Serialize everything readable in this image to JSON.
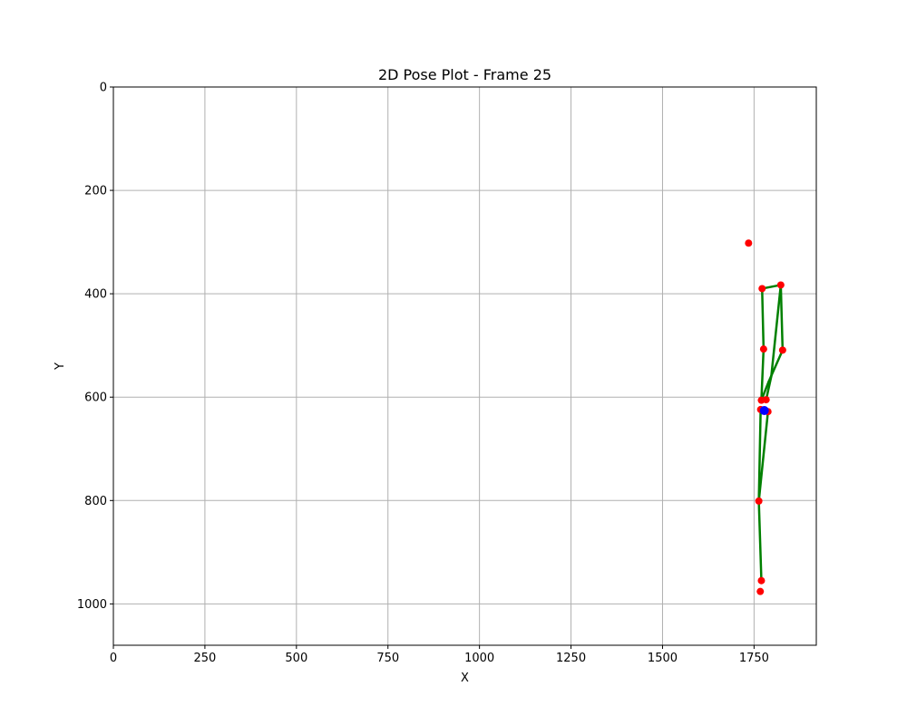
{
  "chart_data": {
    "type": "scatter",
    "title": "2D Pose Plot - Frame 25",
    "xlabel": "X",
    "ylabel": "Y",
    "xlim": [
      0,
      1920
    ],
    "ylim": [
      1080,
      0
    ],
    "y_inverted": true,
    "grid": true,
    "x_ticks": [
      0,
      250,
      500,
      750,
      1000,
      1250,
      1500,
      1750
    ],
    "y_ticks": [
      0,
      200,
      400,
      600,
      800,
      1000
    ],
    "keypoints": [
      {
        "x": 1735,
        "y": 302
      },
      {
        "x": 1772,
        "y": 390
      },
      {
        "x": 1823,
        "y": 383
      },
      {
        "x": 1776,
        "y": 507
      },
      {
        "x": 1828,
        "y": 509
      },
      {
        "x": 1770,
        "y": 606
      },
      {
        "x": 1783,
        "y": 605
      },
      {
        "x": 1768,
        "y": 624
      },
      {
        "x": 1788,
        "y": 628
      },
      {
        "x": 1763,
        "y": 801
      },
      {
        "x": 1770,
        "y": 955
      },
      {
        "x": 1767,
        "y": 976
      }
    ],
    "skeleton_lines": [
      [
        [
          1772,
          390
        ],
        [
          1823,
          383
        ]
      ],
      [
        [
          1823,
          383
        ],
        [
          1828,
          509
        ]
      ],
      [
        [
          1772,
          390
        ],
        [
          1776,
          507
        ]
      ],
      [
        [
          1776,
          507
        ],
        [
          1770,
          606
        ]
      ],
      [
        [
          1828,
          509
        ],
        [
          1790,
          570
        ]
      ],
      [
        [
          1790,
          570
        ],
        [
          1770,
          606
        ]
      ],
      [
        [
          1823,
          383
        ],
        [
          1797,
          560
        ]
      ],
      [
        [
          1797,
          560
        ],
        [
          1783,
          605
        ]
      ],
      [
        [
          1770,
          606
        ],
        [
          1783,
          605
        ]
      ],
      [
        [
          1768,
          624
        ],
        [
          1788,
          628
        ]
      ],
      [
        [
          1788,
          628
        ],
        [
          1763,
          801
        ]
      ],
      [
        [
          1768,
          624
        ],
        [
          1763,
          801
        ]
      ],
      [
        [
          1763,
          801
        ],
        [
          1770,
          955
        ]
      ]
    ],
    "center_point": {
      "x": 1778,
      "y": 626
    },
    "colors": {
      "keypoint": "#ff0000",
      "skeleton": "#008000",
      "center": "#0000ff",
      "grid": "#b0b0b0"
    }
  }
}
